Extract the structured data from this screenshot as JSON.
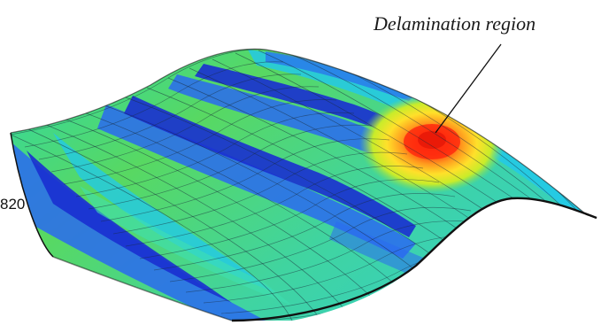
{
  "annotation": {
    "label": "Delamination region"
  },
  "side_number": "820",
  "colormap": [
    "#1a2fd0",
    "#2a6af0",
    "#20c8ee",
    "#3fe0b0",
    "#62d84a",
    "#c8ec2a",
    "#ffe02a",
    "#ffa020",
    "#ff4a12",
    "#e81808"
  ],
  "mesh_color": "#1a2a3a"
}
